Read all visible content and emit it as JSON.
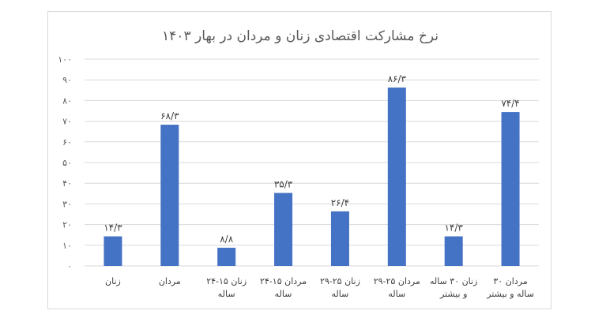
{
  "chart_data": {
    "type": "bar",
    "title": "نرخ مشارکت اقتصادی زنان و مردان در بهار ۱۴۰۳",
    "xlabel": "",
    "ylabel": "",
    "ylim": [
      0,
      100
    ],
    "yticks": [
      "۰",
      "۱۰",
      "۲۰",
      "۳۰",
      "۴۰",
      "۵۰",
      "۶۰",
      "۷۰",
      "۸۰",
      "۹۰",
      "۱۰۰"
    ],
    "grid": true,
    "color": "#4472c4",
    "categories": [
      [
        "زنان"
      ],
      [
        "مردان"
      ],
      [
        "زنان ۱۵-۲۴",
        "ساله"
      ],
      [
        "مردان ۱۵-۲۴",
        "ساله"
      ],
      [
        "زنان ۲۵-۲۹",
        "ساله"
      ],
      [
        "مردان ۲۵-۲۹",
        "ساله"
      ],
      [
        "زنان ۳۰ ساله",
        "و بیشتر"
      ],
      [
        "مردان ۳۰",
        "ساله و بیشتر"
      ]
    ],
    "values": [
      14.3,
      68.3,
      8.8,
      35.3,
      26.4,
      86.3,
      14.3,
      74.4
    ],
    "data_labels": [
      "۱۴/۳",
      "۶۸/۳",
      "۸/۸",
      "۳۵/۳",
      "۲۶/۴",
      "۸۶/۳",
      "۱۴/۳",
      "۷۴/۴"
    ]
  }
}
